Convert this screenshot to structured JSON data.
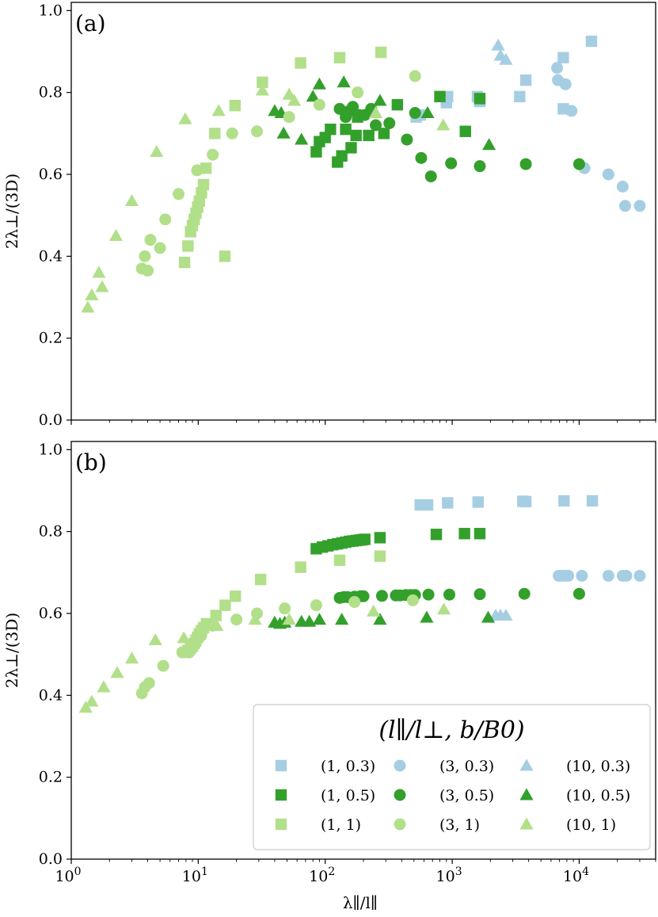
{
  "colors": {
    "light_blue": "#a6cee3",
    "dark_green": "#33a02c",
    "light_green": "#b2df8a"
  },
  "legend": {
    "title": "(l∥/l⊥,  b/B0)",
    "placement": "lower-right of panel (b)",
    "entries": [
      {
        "label": "(1, 0.3)",
        "marker": "square",
        "color": "light_blue"
      },
      {
        "label": "(3, 0.3)",
        "marker": "circle",
        "color": "light_blue"
      },
      {
        "label": "(10, 0.3)",
        "marker": "triangle",
        "color": "light_blue"
      },
      {
        "label": "(1, 0.5)",
        "marker": "square",
        "color": "dark_green"
      },
      {
        "label": "(3, 0.5)",
        "marker": "circle",
        "color": "dark_green"
      },
      {
        "label": "(10, 0.5)",
        "marker": "triangle",
        "color": "dark_green"
      },
      {
        "label": "(1, 1)",
        "marker": "square",
        "color": "light_green"
      },
      {
        "label": "(3, 1)",
        "marker": "circle",
        "color": "light_green"
      },
      {
        "label": "(10, 1)",
        "marker": "triangle",
        "color": "light_green"
      }
    ]
  },
  "chart_data": [
    {
      "type": "scatter",
      "panel_label": "(a)",
      "xlabel": "",
      "ylabel": "2λ⊥/(3D)",
      "xscale": "log",
      "xlim": [
        1,
        40000
      ],
      "ylim": [
        0,
        1.02
      ],
      "xticks": [
        {
          "v": 1,
          "label": "10^0"
        },
        {
          "v": 10,
          "label": "10^1"
        },
        {
          "v": 100,
          "label": "10^2"
        },
        {
          "v": 1000,
          "label": "10^3"
        },
        {
          "v": 10000,
          "label": "10^4"
        }
      ],
      "yticks": [
        "0.0",
        "0.2",
        "0.4",
        "0.6",
        "0.8",
        "1.0"
      ],
      "grid": false,
      "series": [
        {
          "legend_index": 0,
          "points": [
            [
              520,
              0.74
            ],
            [
              560,
              0.745
            ],
            [
              920,
              0.79
            ],
            [
              1580,
              0.79
            ],
            [
              3400,
              0.79
            ],
            [
              3800,
              0.83
            ],
            [
              7500,
              0.76
            ],
            [
              7500,
              0.885
            ],
            [
              12500,
              0.925
            ],
            [
              900,
              0.775
            ],
            [
              1650,
              0.778
            ]
          ]
        },
        {
          "legend_index": 1,
          "points": [
            [
              6700,
              0.86
            ],
            [
              6800,
              0.83
            ],
            [
              7800,
              0.82
            ],
            [
              8700,
              0.755
            ],
            [
              11000,
              0.615
            ],
            [
              17000,
              0.6
            ],
            [
              22000,
              0.57
            ],
            [
              23000,
              0.523
            ],
            [
              30000,
              0.523
            ]
          ]
        },
        {
          "legend_index": 2,
          "points": [
            [
              2300,
              0.915
            ],
            [
              2400,
              0.89
            ],
            [
              2650,
              0.88
            ]
          ]
        },
        {
          "legend_index": 3,
          "points": [
            [
              85,
              0.655
            ],
            [
              90,
              0.68
            ],
            [
              100,
              0.69
            ],
            [
              110,
              0.71
            ],
            [
              125,
              0.63
            ],
            [
              135,
              0.645
            ],
            [
              145,
              0.71
            ],
            [
              160,
              0.665
            ],
            [
              175,
              0.695
            ],
            [
              180,
              0.74
            ],
            [
              220,
              0.695
            ],
            [
              290,
              0.7
            ],
            [
              370,
              0.77
            ],
            [
              800,
              0.79
            ],
            [
              1270,
              0.705
            ],
            [
              1650,
              0.785
            ]
          ]
        },
        {
          "legend_index": 4,
          "points": [
            [
              130,
              0.76
            ],
            [
              145,
              0.74
            ],
            [
              155,
              0.755
            ],
            [
              165,
              0.765
            ],
            [
              185,
              0.745
            ],
            [
              205,
              0.745
            ],
            [
              230,
              0.76
            ],
            [
              250,
              0.72
            ],
            [
              320,
              0.725
            ],
            [
              440,
              0.685
            ],
            [
              510,
              0.75
            ],
            [
              570,
              0.64
            ],
            [
              680,
              0.595
            ],
            [
              980,
              0.627
            ],
            [
              1650,
              0.62
            ],
            [
              3800,
              0.625
            ],
            [
              10000,
              0.625
            ]
          ]
        },
        {
          "legend_index": 5,
          "points": [
            [
              40,
              0.755
            ],
            [
              45,
              0.75
            ],
            [
              47,
              0.7
            ],
            [
              65,
              0.685
            ],
            [
              80,
              0.79
            ],
            [
              90,
              0.82
            ],
            [
              140,
              0.825
            ],
            [
              270,
              0.78
            ],
            [
              640,
              0.75
            ],
            [
              1950,
              0.672
            ]
          ]
        },
        {
          "legend_index": 6,
          "points": [
            [
              7.8,
              0.385
            ],
            [
              8.3,
              0.425
            ],
            [
              8.7,
              0.46
            ],
            [
              9.0,
              0.475
            ],
            [
              9.3,
              0.49
            ],
            [
              9.6,
              0.505
            ],
            [
              9.9,
              0.52
            ],
            [
              10.2,
              0.535
            ],
            [
              10.6,
              0.555
            ],
            [
              11.0,
              0.575
            ],
            [
              11.5,
              0.615
            ],
            [
              13.5,
              0.7
            ],
            [
              16.2,
              0.4
            ],
            [
              19.5,
              0.768
            ],
            [
              32,
              0.825
            ],
            [
              64,
              0.872
            ],
            [
              130,
              0.885
            ],
            [
              275,
              0.898
            ]
          ]
        },
        {
          "legend_index": 7,
          "points": [
            [
              3.6,
              0.37
            ],
            [
              3.8,
              0.4
            ],
            [
              4.0,
              0.365
            ],
            [
              4.2,
              0.44
            ],
            [
              5.0,
              0.42
            ],
            [
              5.5,
              0.49
            ],
            [
              7.0,
              0.552
            ],
            [
              9.8,
              0.61
            ],
            [
              13.0,
              0.648
            ],
            [
              18.5,
              0.7
            ],
            [
              29,
              0.705
            ],
            [
              52,
              0.74
            ],
            [
              90,
              0.77
            ],
            [
              180,
              0.8
            ],
            [
              510,
              0.84
            ]
          ]
        },
        {
          "legend_index": 8,
          "points": [
            [
              1.35,
              0.275
            ],
            [
              1.45,
              0.305
            ],
            [
              1.65,
              0.36
            ],
            [
              1.75,
              0.325
            ],
            [
              2.25,
              0.45
            ],
            [
              3.0,
              0.535
            ],
            [
              4.7,
              0.655
            ],
            [
              7.9,
              0.735
            ],
            [
              14.5,
              0.755
            ],
            [
              32,
              0.805
            ],
            [
              52,
              0.795
            ],
            [
              57,
              0.78
            ],
            [
              250,
              0.75
            ],
            [
              850,
              0.72
            ]
          ]
        }
      ]
    },
    {
      "type": "scatter",
      "panel_label": "(b)",
      "xlabel": "λ∥/l∥",
      "ylabel": "2λ⊥/(3D)",
      "xscale": "log",
      "xlim": [
        1,
        40000
      ],
      "ylim": [
        0,
        1.02
      ],
      "xticks": [
        {
          "v": 1,
          "label": "10^0"
        },
        {
          "v": 10,
          "label": "10^1"
        },
        {
          "v": 100,
          "label": "10^2"
        },
        {
          "v": 1000,
          "label": "10^3"
        },
        {
          "v": 10000,
          "label": "10^4"
        }
      ],
      "yticks": [
        "0.0",
        "0.2",
        "0.4",
        "0.6",
        "0.8",
        "1.0"
      ],
      "grid": false,
      "series": [
        {
          "legend_index": 0,
          "points": [
            [
              560,
              0.865
            ],
            [
              640,
              0.865
            ],
            [
              920,
              0.87
            ],
            [
              1600,
              0.872
            ],
            [
              3600,
              0.874
            ],
            [
              3800,
              0.873
            ],
            [
              7600,
              0.875
            ],
            [
              12700,
              0.875
            ]
          ]
        },
        {
          "legend_index": 1,
          "points": [
            [
              6900,
              0.692
            ],
            [
              7300,
              0.692
            ],
            [
              7700,
              0.692
            ],
            [
              8200,
              0.692
            ],
            [
              10500,
              0.692
            ],
            [
              17000,
              0.692
            ],
            [
              22000,
              0.692
            ],
            [
              23500,
              0.692
            ],
            [
              30000,
              0.692
            ]
          ]
        },
        {
          "legend_index": 2,
          "points": [
            [
              2200,
              0.595
            ],
            [
              2400,
              0.595
            ],
            [
              2650,
              0.595
            ]
          ]
        },
        {
          "legend_index": 3,
          "points": [
            [
              85,
              0.758
            ],
            [
              95,
              0.762
            ],
            [
              105,
              0.765
            ],
            [
              115,
              0.768
            ],
            [
              125,
              0.77
            ],
            [
              135,
              0.772
            ],
            [
              145,
              0.774
            ],
            [
              155,
              0.776
            ],
            [
              165,
              0.777
            ],
            [
              175,
              0.778
            ],
            [
              185,
              0.779
            ],
            [
              195,
              0.78
            ],
            [
              205,
              0.781
            ],
            [
              270,
              0.785
            ],
            [
              750,
              0.793
            ],
            [
              1250,
              0.795
            ],
            [
              1650,
              0.795
            ]
          ]
        },
        {
          "legend_index": 4,
          "points": [
            [
              130,
              0.638
            ],
            [
              140,
              0.64
            ],
            [
              150,
              0.64
            ],
            [
              170,
              0.641
            ],
            [
              190,
              0.642
            ],
            [
              200,
              0.642
            ],
            [
              280,
              0.643
            ],
            [
              360,
              0.644
            ],
            [
              390,
              0.644
            ],
            [
              430,
              0.645
            ],
            [
              470,
              0.645
            ],
            [
              510,
              0.645
            ],
            [
              650,
              0.646
            ],
            [
              950,
              0.646
            ],
            [
              1650,
              0.647
            ],
            [
              3700,
              0.648
            ],
            [
              10000,
              0.648
            ]
          ]
        },
        {
          "legend_index": 5,
          "points": [
            [
              40,
              0.578
            ],
            [
              44,
              0.575
            ],
            [
              48,
              0.578
            ],
            [
              65,
              0.58
            ],
            [
              75,
              0.58
            ],
            [
              90,
              0.585
            ],
            [
              135,
              0.585
            ],
            [
              270,
              0.585
            ],
            [
              630,
              0.59
            ],
            [
              1920,
              0.59
            ]
          ]
        },
        {
          "legend_index": 6,
          "points": [
            [
              7.9,
              0.505
            ],
            [
              8.3,
              0.51
            ],
            [
              8.7,
              0.515
            ],
            [
              9.0,
              0.52
            ],
            [
              9.3,
              0.527
            ],
            [
              9.6,
              0.535
            ],
            [
              9.9,
              0.542
            ],
            [
              10.2,
              0.55
            ],
            [
              10.6,
              0.558
            ],
            [
              11.0,
              0.565
            ],
            [
              11.6,
              0.575
            ],
            [
              13.8,
              0.595
            ],
            [
              16.3,
              0.62
            ],
            [
              19.6,
              0.642
            ],
            [
              31,
              0.683
            ],
            [
              64,
              0.713
            ],
            [
              130,
              0.73
            ],
            [
              270,
              0.74
            ]
          ]
        },
        {
          "legend_index": 7,
          "points": [
            [
              3.6,
              0.405
            ],
            [
              3.8,
              0.42
            ],
            [
              4.1,
              0.43
            ],
            [
              5.3,
              0.472
            ],
            [
              7.5,
              0.505
            ],
            [
              8.5,
              0.505
            ],
            [
              9.5,
              0.525
            ],
            [
              10.5,
              0.545
            ],
            [
              13.0,
              0.57
            ],
            [
              20,
              0.585
            ],
            [
              29,
              0.6
            ],
            [
              48,
              0.612
            ],
            [
              85,
              0.62
            ],
            [
              170,
              0.628
            ],
            [
              490,
              0.632
            ]
          ]
        },
        {
          "legend_index": 8,
          "points": [
            [
              1.3,
              0.37
            ],
            [
              1.45,
              0.385
            ],
            [
              1.8,
              0.42
            ],
            [
              2.3,
              0.455
            ],
            [
              3.0,
              0.49
            ],
            [
              4.6,
              0.535
            ],
            [
              7.7,
              0.54
            ],
            [
              14,
              0.57
            ],
            [
              28,
              0.585
            ],
            [
              52,
              0.585
            ],
            [
              240,
              0.605
            ],
            [
              860,
              0.61
            ]
          ]
        }
      ]
    }
  ]
}
